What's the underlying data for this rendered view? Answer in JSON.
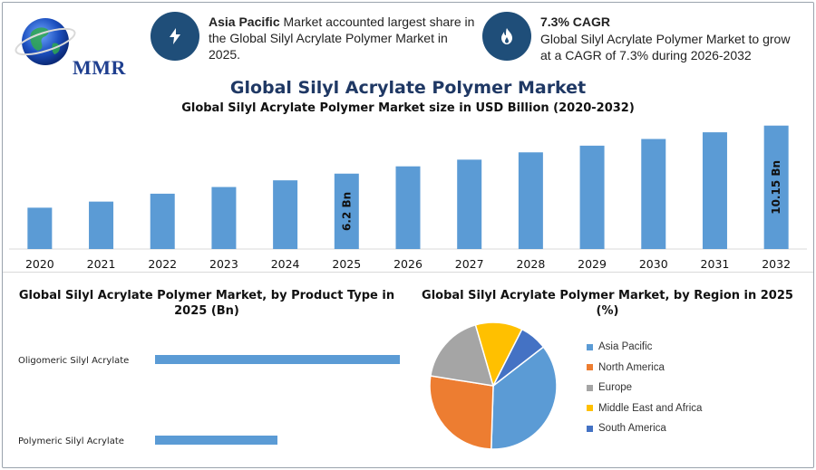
{
  "logo": {
    "text": "MMR"
  },
  "kpi1": {
    "icon": "lightning-icon",
    "bold": "Asia Pacific",
    "text": " Market accounted largest share in the Global Silyl Acrylate Polymer Market in 2025."
  },
  "kpi2": {
    "icon": "flame-icon",
    "title": "7.3% CAGR",
    "text": "Global Silyl Acrylate Polymer Market to grow at a CAGR of 7.3% during 2026-2032"
  },
  "title": "Global Silyl Acrylate Polymer Market",
  "subtitle": "Global Silyl Acrylate Polymer Market size in USD Billion (2020-2032)",
  "product_title": "Global Silyl Acrylate Polymer Market, by Product Type in 2025 (Bn)",
  "region_title": "Global Silyl Acrylate Polymer Market, by Region in 2025 (%)",
  "colors": {
    "bar": "#5b9bd5",
    "kpi": "#1f4e79",
    "title": "#1f3864"
  },
  "chart_data": [
    {
      "type": "bar",
      "title": "Global Silyl Acrylate Polymer Market size in USD Billion (2020-2032)",
      "categories": [
        "2020",
        "2021",
        "2022",
        "2023",
        "2024",
        "2025",
        "2026",
        "2027",
        "2028",
        "2029",
        "2030",
        "2031",
        "2032"
      ],
      "values": [
        3.4,
        3.9,
        4.55,
        5.1,
        5.65,
        6.2,
        6.8,
        7.35,
        7.95,
        8.5,
        9.05,
        9.6,
        10.15
      ],
      "data_labels": {
        "2025": "6.2 Bn",
        "2032": "10.15 Bn"
      },
      "ylim": [
        0,
        10.5
      ],
      "grid": false
    },
    {
      "type": "bar",
      "orientation": "horizontal",
      "title": "Global Silyl Acrylate Polymer Market, by Product Type in 2025 (Bn)",
      "categories": [
        "Oligomeric Silyl Acrylate",
        "Polymeric Silyl Acrylate"
      ],
      "values": [
        4.0,
        2.0
      ],
      "xlim": [
        0,
        5.3
      ],
      "grid": false
    },
    {
      "type": "pie",
      "title": "Global Silyl Acrylate Polymer Market, by Region in 2025 (%)",
      "categories": [
        "Asia Pacific",
        "North America",
        "Europe",
        "Middle East and Africa",
        "South America"
      ],
      "values": [
        36,
        27,
        18,
        12,
        7
      ],
      "colors": [
        "#5b9bd5",
        "#ed7d31",
        "#a5a5a5",
        "#ffc000",
        "#4472c4"
      ],
      "legend": "right"
    }
  ]
}
